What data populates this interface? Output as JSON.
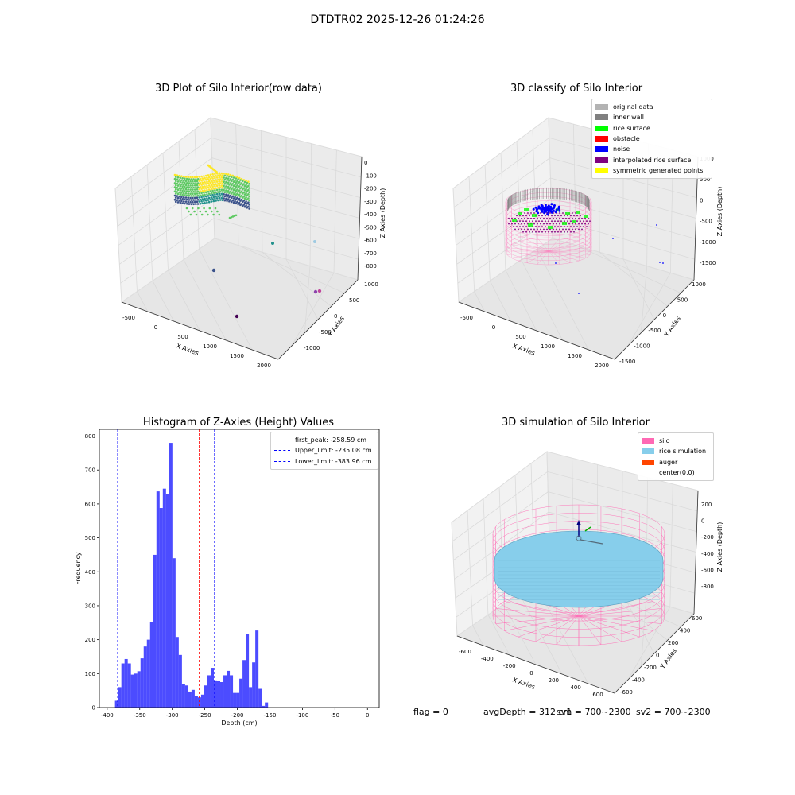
{
  "figure": {
    "suptitle": "DTDTR02 2025-12-26 01:24:26",
    "footer": {
      "flag": "flag = 0",
      "avg_depth": "avgDepth = 312 cm",
      "sv1": "sv1 = 700~2300",
      "sv2": "sv2 = 700~2300"
    }
  },
  "panels": {
    "raw": {
      "title": "3D Plot of Silo Interior(row data)",
      "xlabel": "X Axies",
      "ylabel": "Y Axies",
      "zlabel": "Z Axies (Depth)",
      "xticks": [
        "-500",
        "0",
        "500",
        "1000",
        "1500",
        "2000"
      ],
      "yticks": [
        "1000",
        "500",
        "0",
        "-500",
        "-1000"
      ],
      "zticks": [
        "0",
        "-100",
        "-200",
        "-300",
        "-400",
        "-500",
        "-600",
        "-700",
        "-800"
      ],
      "colormap": [
        "#440154",
        "#3b528b",
        "#21918c",
        "#5ec962",
        "#fde725"
      ]
    },
    "classify": {
      "title": "3D classify of Silo Interior",
      "xlabel": "X Axies",
      "ylabel": "Y Axies",
      "zlabel": "Z Axies (Depth)",
      "xticks": [
        "-500",
        "0",
        "500",
        "1000",
        "1500",
        "2000"
      ],
      "yticks": [
        "1000",
        "500",
        "0",
        "-500",
        "-1000",
        "-1500"
      ],
      "zticks": [
        "1000",
        "500",
        "0",
        "-500",
        "-1000",
        "-1500"
      ],
      "legend": [
        {
          "label": "original data",
          "color": "#b3b3b3"
        },
        {
          "label": "inner wall",
          "color": "#808080"
        },
        {
          "label": "rice surface",
          "color": "#00ff00"
        },
        {
          "label": "obstacle",
          "color": "#ff0000"
        },
        {
          "label": "noise",
          "color": "#0000ff"
        },
        {
          "label": "interpolated rice surface",
          "color": "#800080"
        },
        {
          "label": "symmetric generated points",
          "color": "#ffff00"
        }
      ]
    },
    "simulation": {
      "title": "3D simulation of Silo Interior",
      "xlabel": "X Axies",
      "ylabel": "Y Axies",
      "zlabel": "Z Axies (Depth)",
      "xticks": [
        "-600",
        "-400",
        "-200",
        "0",
        "200",
        "400",
        "600"
      ],
      "yticks": [
        "600",
        "400",
        "200",
        "0",
        "-200",
        "-400",
        "-600"
      ],
      "zticks": [
        "200",
        "0",
        "-200",
        "-400",
        "-600",
        "-800"
      ],
      "legend": [
        {
          "label": "silo",
          "color": "#ff69b4"
        },
        {
          "label": "rice simulation",
          "color": "#87ceeb"
        },
        {
          "label": "auger",
          "color": "#ff4500"
        },
        {
          "label": "center(0,0)",
          "color": "none"
        }
      ]
    }
  },
  "chart_data": {
    "type": "bar",
    "title": "Histogram of Z-Axies (Height) Values",
    "xlabel": "Depth (cm)",
    "ylabel": "Frequency",
    "xlim": [
      -412,
      18
    ],
    "ylim": [
      0,
      820
    ],
    "xticks": [
      -400,
      -350,
      -300,
      -250,
      -200,
      -150,
      -100,
      -50,
      0
    ],
    "yticks": [
      0,
      100,
      200,
      300,
      400,
      500,
      600,
      700,
      800
    ],
    "bar_color": "#0000ff",
    "bin_start": -388,
    "bin_width": 4.9,
    "values": [
      20,
      60,
      130,
      143,
      130,
      97,
      100,
      107,
      145,
      180,
      200,
      253,
      450,
      637,
      588,
      645,
      628,
      780,
      440,
      208,
      155,
      68,
      65,
      47,
      52,
      33,
      30,
      38,
      65,
      95,
      117,
      80,
      78,
      75,
      95,
      108,
      95,
      43,
      43,
      85,
      140,
      217,
      60,
      133,
      227,
      55,
      5,
      15
    ],
    "lines": [
      {
        "name": "first_peak: -258.59 cm",
        "x": -258.59,
        "color": "#ff0000"
      },
      {
        "name": "Upper_limit: -235.08 cm",
        "x": -235.08,
        "color": "#0000ff"
      },
      {
        "name": "Lower_limit: -383.96 cm",
        "x": -383.96,
        "color": "#0000ff"
      }
    ]
  }
}
